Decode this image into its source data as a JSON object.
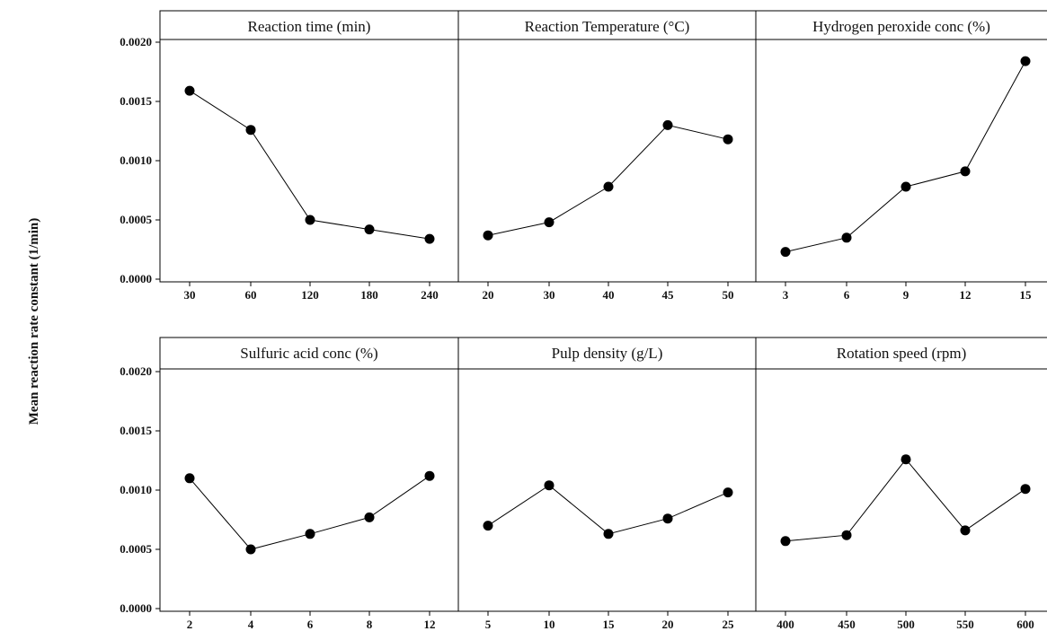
{
  "chart_data": {
    "type": "line",
    "ylabel": "Mean reaction rate constant (1/min)",
    "ylim": [
      0,
      0.002
    ],
    "y_ticks": [
      "0.0000",
      "0.0005",
      "0.0010",
      "0.0015",
      "0.0020"
    ],
    "y_tick_values": [
      0,
      0.0005,
      0.001,
      0.0015,
      0.002
    ],
    "marker_color": "#000000",
    "line_color": "#000000",
    "panels": [
      {
        "title": "Reaction time (min)",
        "categories": [
          "30",
          "60",
          "120",
          "180",
          "240"
        ],
        "values": [
          0.00159,
          0.00126,
          0.0005,
          0.00042,
          0.00034
        ]
      },
      {
        "title": "Reaction Temperature (°C)",
        "categories": [
          "20",
          "30",
          "40",
          "45",
          "50"
        ],
        "values": [
          0.00037,
          0.00048,
          0.00078,
          0.0013,
          0.00118
        ]
      },
      {
        "title": "Hydrogen peroxide conc (%)",
        "categories": [
          "3",
          "6",
          "9",
          "12",
          "15"
        ],
        "values": [
          0.00023,
          0.00035,
          0.00078,
          0.00091,
          0.00184
        ]
      },
      {
        "title": "Sulfuric acid conc (%)",
        "categories": [
          "2",
          "4",
          "6",
          "8",
          "12"
        ],
        "values": [
          0.0011,
          0.0005,
          0.00063,
          0.00077,
          0.00112
        ]
      },
      {
        "title": "Pulp density (g/L)",
        "categories": [
          "5",
          "10",
          "15",
          "20",
          "25"
        ],
        "values": [
          0.0007,
          0.00104,
          0.00063,
          0.00076,
          0.00098
        ]
      },
      {
        "title": "Rotation speed (rpm)",
        "categories": [
          "400",
          "450",
          "500",
          "550",
          "600"
        ],
        "values": [
          0.00057,
          0.00062,
          0.00126,
          0.00066,
          0.00101
        ]
      }
    ]
  }
}
